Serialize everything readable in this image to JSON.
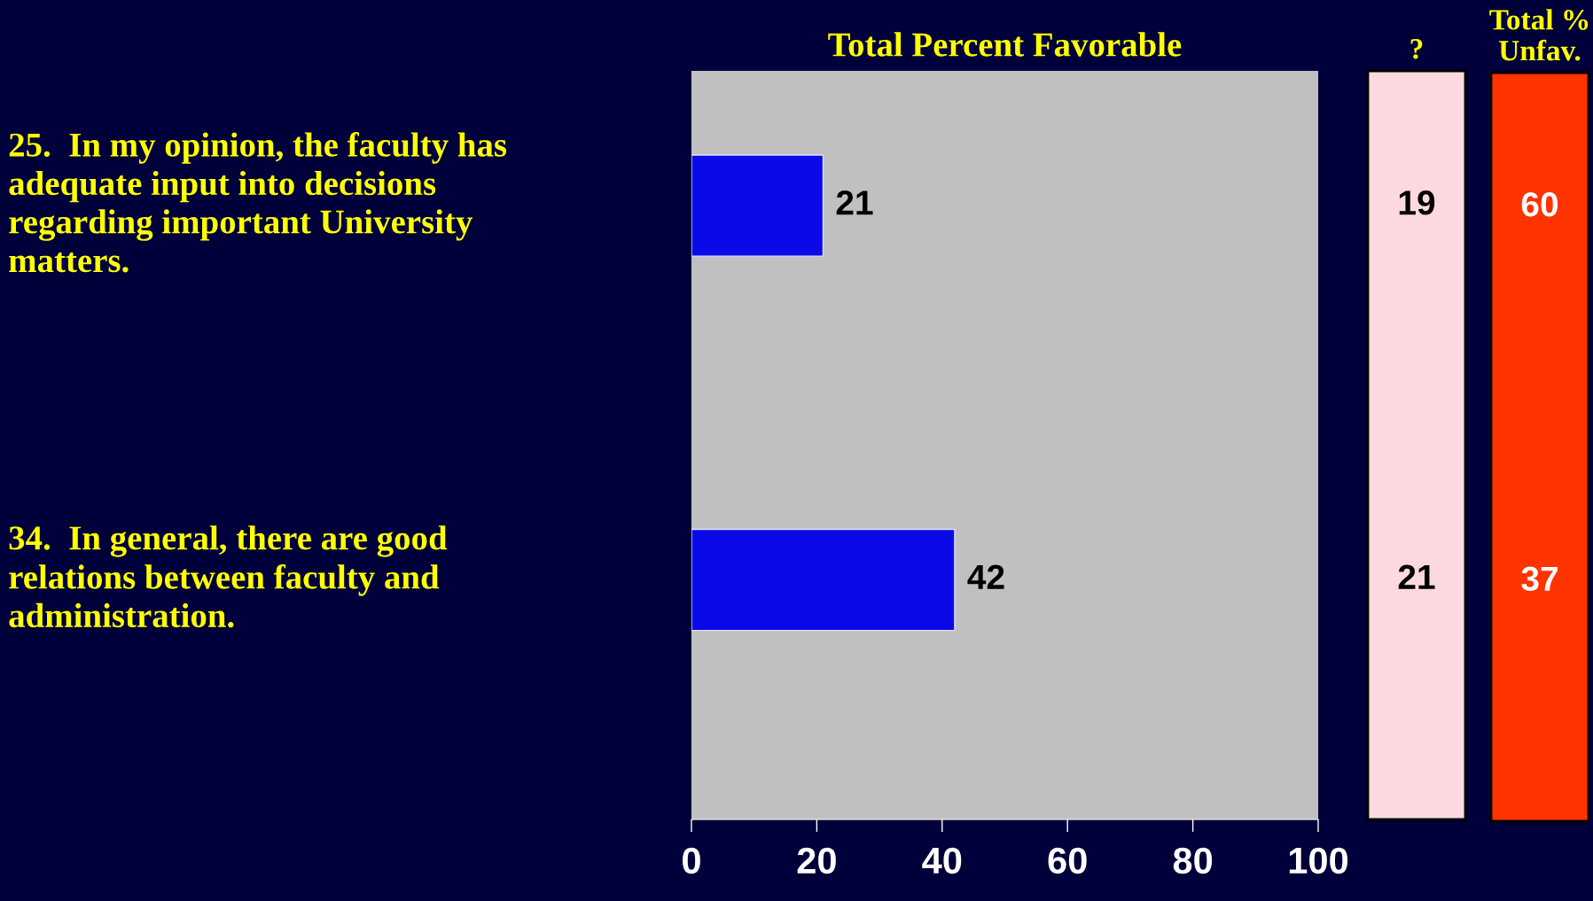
{
  "chart_data": [
    {
      "type": "bar",
      "orientation": "horizontal",
      "title": "Total Percent Favorable",
      "categories": [
        "25.  In my opinion, the faculty has\nadequate input into decisions\nregarding important University\nmatters.",
        "34.  In general, there are good\nrelations between faculty and\nadministration."
      ],
      "values": [
        21,
        42
      ],
      "color": "#0a0ae8",
      "data_labels": true,
      "xlim": [
        0,
        100
      ],
      "xticks": [
        0,
        20,
        40,
        60,
        80,
        100
      ],
      "grid": false
    },
    {
      "type": "other",
      "title": "?",
      "annotations": [
        "19",
        "21"
      ],
      "color": "#fcd9de"
    },
    {
      "type": "other",
      "title": "Total %\nUnfav.",
      "annotations": [
        "60",
        "37"
      ],
      "color": "#ff3300"
    }
  ]
}
